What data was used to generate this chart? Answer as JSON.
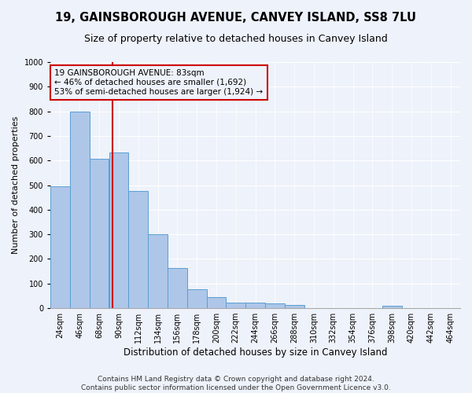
{
  "title": "19, GAINSBOROUGH AVENUE, CANVEY ISLAND, SS8 7LU",
  "subtitle": "Size of property relative to detached houses in Canvey Island",
  "xlabel": "Distribution of detached houses by size in Canvey Island",
  "ylabel": "Number of detached properties",
  "footer_line1": "Contains HM Land Registry data © Crown copyright and database right 2024.",
  "footer_line2": "Contains public sector information licensed under the Open Government Licence v3.0.",
  "bar_labels": [
    "24sqm",
    "46sqm",
    "68sqm",
    "90sqm",
    "112sqm",
    "134sqm",
    "156sqm",
    "178sqm",
    "200sqm",
    "222sqm",
    "244sqm",
    "266sqm",
    "288sqm",
    "310sqm",
    "332sqm",
    "354sqm",
    "376sqm",
    "398sqm",
    "420sqm",
    "442sqm",
    "464sqm"
  ],
  "bar_values": [
    495,
    800,
    607,
    632,
    475,
    300,
    162,
    78,
    45,
    23,
    22,
    18,
    12,
    0,
    0,
    0,
    0,
    10,
    0,
    0,
    0
  ],
  "bar_color": "#aec6e8",
  "bar_edge_color": "#5a9fd4",
  "vline_color": "#cc0000",
  "annotation_line1": "19 GAINSBOROUGH AVENUE: 83sqm",
  "annotation_line2": "← 46% of detached houses are smaller (1,692)",
  "annotation_line3": "53% of semi-detached houses are larger (1,924) →",
  "annotation_box_color": "#cc0000",
  "ylim": [
    0,
    1000
  ],
  "yticks": [
    0,
    100,
    200,
    300,
    400,
    500,
    600,
    700,
    800,
    900,
    1000
  ],
  "background_color": "#eef2fa",
  "grid_color": "#ffffff",
  "title_fontsize": 10.5,
  "subtitle_fontsize": 9,
  "ylabel_fontsize": 8,
  "xlabel_fontsize": 8.5,
  "tick_fontsize": 7,
  "footer_fontsize": 6.5,
  "annotation_fontsize": 7.5,
  "vline_pos": 2.68
}
